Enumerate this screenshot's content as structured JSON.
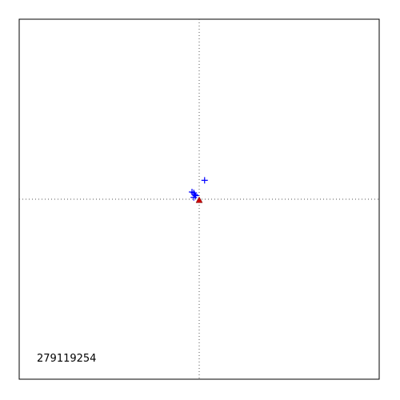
{
  "chart_data": {
    "type": "scatter",
    "title": "",
    "xlabel": "",
    "ylabel": "",
    "xlim": [
      -1,
      1
    ],
    "ylim": [
      -1,
      1
    ],
    "grid": false,
    "crosshair": {
      "x": 0,
      "y": 0,
      "style": "dotted",
      "color": "#555555"
    },
    "annotation": "279119254",
    "series": [
      {
        "marker": "plus",
        "color": "#0000ff",
        "points": [
          {
            "x": 0.03,
            "y": 0.105
          },
          {
            "x": -0.04,
            "y": 0.04
          },
          {
            "x": -0.03,
            "y": 0.035
          },
          {
            "x": -0.025,
            "y": 0.025
          },
          {
            "x": -0.02,
            "y": 0.02
          },
          {
            "x": -0.03,
            "y": 0.01
          }
        ]
      },
      {
        "marker": "triangle",
        "color": "#cc0000",
        "points": [
          {
            "x": 0.0,
            "y": -0.005
          }
        ]
      }
    ]
  }
}
